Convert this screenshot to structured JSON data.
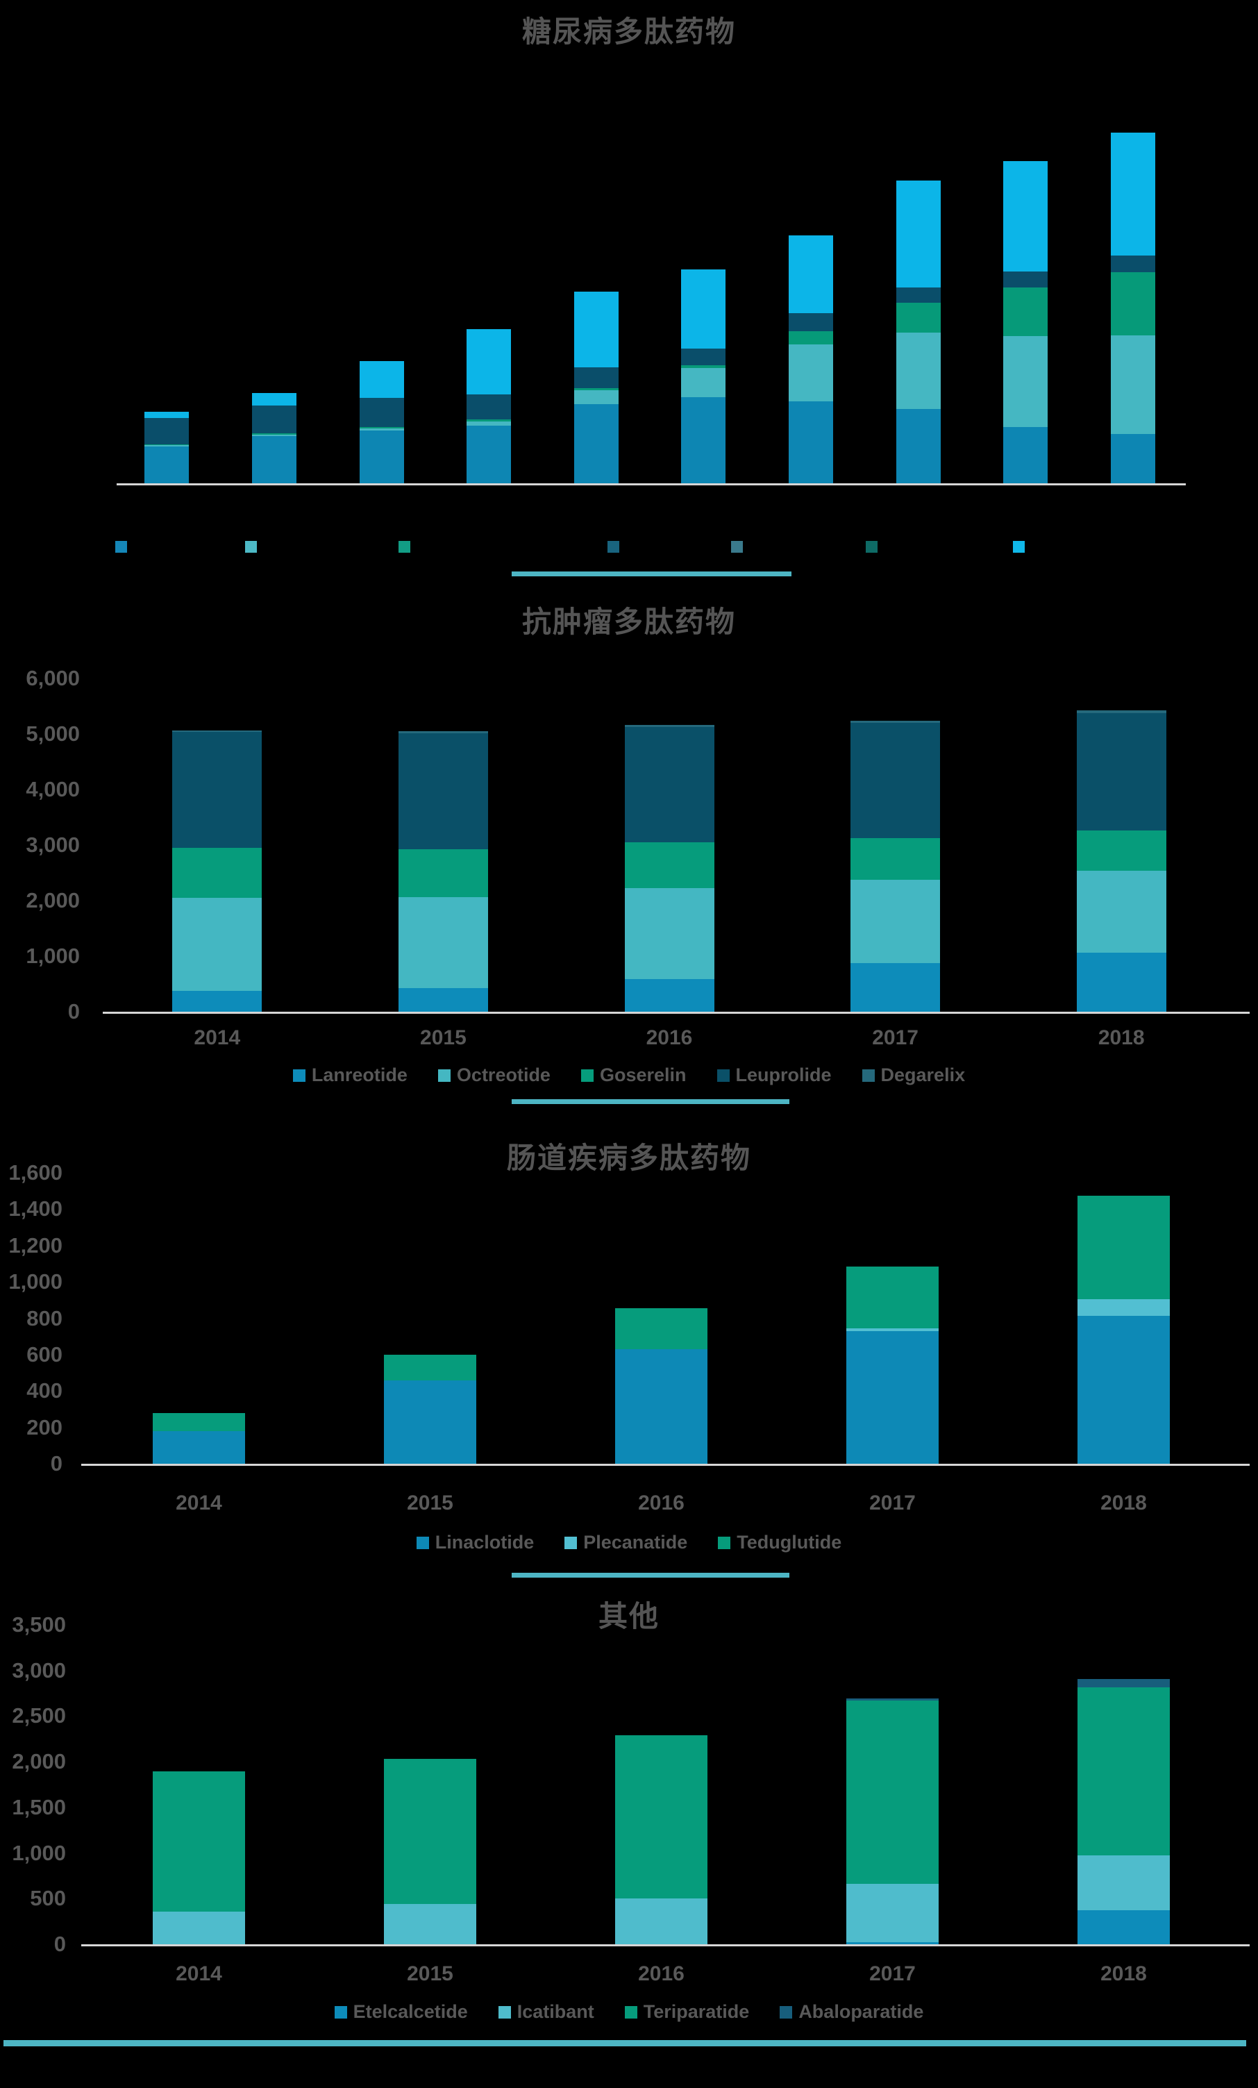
{
  "page": {
    "background": "#000000"
  },
  "theme": {
    "title_color": "#555555",
    "axis_label_color": "#595959",
    "legend_text_color": "#595959",
    "axis_line_color": "#d6d6d6",
    "divider_color": "#4db5c4"
  },
  "chart_data": [
    {
      "type": "bar",
      "stacked": true,
      "title": "糖尿病多肽药物",
      "categories": [
        "",
        "",
        "",
        "",
        "",
        "",
        "",
        "",
        "",
        ""
      ],
      "xlabel": "",
      "ylabel": "",
      "ylim": [
        0,
        1000
      ],
      "grid": false,
      "yticks_visible": false,
      "legend_position": "bottom",
      "series": [
        {
          "name": "",
          "color": "#0d86b3",
          "values": [
            105,
            135,
            150,
            165,
            225,
            245,
            234,
            212,
            160,
            140
          ]
        },
        {
          "name": "",
          "color": "#45b7c2",
          "values": [
            3,
            4,
            6,
            12,
            40,
            84,
            162,
            217,
            259,
            282
          ]
        },
        {
          "name": "",
          "color": "#069a79",
          "values": [
            2,
            3,
            4,
            5,
            6,
            7,
            38,
            86,
            139,
            181
          ]
        },
        {
          "name": "",
          "color": "#0a4e6a",
          "values": [
            76,
            80,
            84,
            72,
            60,
            48,
            52,
            44,
            46,
            47
          ]
        },
        {
          "name": "",
          "color": "#0cb5e8",
          "values": [
            18,
            36,
            105,
            186,
            215,
            225,
            222,
            304,
            314,
            350
          ]
        }
      ],
      "legend_swatches": [
        {
          "label": "",
          "color": "#1587b8"
        },
        {
          "label": "",
          "color": "#4db9c6"
        },
        {
          "label": "",
          "color": "#129d85"
        },
        {
          "label": "",
          "color": "#19647f"
        },
        {
          "label": "",
          "color": "#3a7a8c"
        },
        {
          "label": "",
          "color": "#0e6b66"
        },
        {
          "label": "",
          "color": "#10b8e9"
        }
      ]
    },
    {
      "type": "bar",
      "stacked": true,
      "title": "抗肿瘤多肽药物",
      "categories": [
        "2014",
        "2015",
        "2016",
        "2017",
        "2018"
      ],
      "xlabel": "",
      "ylabel": "",
      "ylim": [
        0,
        6000
      ],
      "grid": false,
      "ytick_labels": [
        "6,000",
        "5,000",
        "4,000",
        "3,000",
        "2,000",
        "1,000",
        "0"
      ],
      "legend_position": "bottom",
      "series": [
        {
          "name": "Lanreotide",
          "color": "#0d8cba",
          "values": [
            380,
            430,
            590,
            880,
            1060
          ]
        },
        {
          "name": "Octreotide",
          "color": "#44b7c2",
          "values": [
            1670,
            1640,
            1640,
            1500,
            1470
          ]
        },
        {
          "name": "Goserelin",
          "color": "#069c7c",
          "values": [
            900,
            860,
            830,
            750,
            720
          ]
        },
        {
          "name": "Leuprolide",
          "color": "#0a5068",
          "values": [
            2090,
            2090,
            2070,
            2080,
            2110
          ]
        },
        {
          "name": "Degarelix",
          "color": "#25697c",
          "values": [
            30,
            40,
            35,
            40,
            50
          ]
        }
      ]
    },
    {
      "type": "bar",
      "stacked": true,
      "title": "肠道疾病多肽药物",
      "categories": [
        "2014",
        "2015",
        "2016",
        "2017",
        "2018"
      ],
      "xlabel": "",
      "ylabel": "",
      "ylim": [
        0,
        1600
      ],
      "grid": false,
      "ytick_labels": [
        "1,600",
        "1,400",
        "1,200",
        "1,000",
        "800",
        "600",
        "400",
        "200",
        "0"
      ],
      "legend_position": "bottom",
      "series": [
        {
          "name": "Linaclotide",
          "color": "#0d89b6",
          "values": [
            180,
            460,
            630,
            730,
            815
          ]
        },
        {
          "name": "Plecanatide",
          "color": "#52bfd2",
          "values": [
            0,
            0,
            0,
            15,
            90
          ]
        },
        {
          "name": "Teduglutide",
          "color": "#069c7c",
          "values": [
            100,
            140,
            225,
            340,
            570
          ]
        }
      ]
    },
    {
      "type": "bar",
      "stacked": true,
      "title": "其他",
      "categories": [
        "2014",
        "2015",
        "2016",
        "2017",
        "2018"
      ],
      "xlabel": "",
      "ylabel": "",
      "ylim": [
        0,
        3500
      ],
      "grid": false,
      "ytick_labels": [
        "3,500",
        "3,000",
        "2,500",
        "2,000",
        "1,500",
        "1,000",
        "500",
        "0"
      ],
      "legend_position": "bottom",
      "series": [
        {
          "name": "Etelcalcetide",
          "color": "#0d8cba",
          "values": [
            0,
            0,
            0,
            20,
            370
          ]
        },
        {
          "name": "Icatibant",
          "color": "#4fbccc",
          "values": [
            360,
            440,
            500,
            640,
            600
          ]
        },
        {
          "name": "Teriparatide",
          "color": "#069c7c",
          "values": [
            1540,
            1590,
            1790,
            2010,
            1840
          ]
        },
        {
          "name": "Abaloparatide",
          "color": "#175e7c",
          "values": [
            0,
            0,
            0,
            25,
            95
          ]
        }
      ]
    }
  ]
}
